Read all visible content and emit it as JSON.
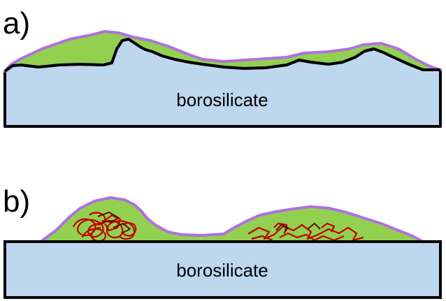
{
  "panels": [
    {
      "label": "a)",
      "substrate_label": "borosilicate"
    },
    {
      "label": "b)",
      "substrate_label": "borosilicate"
    }
  ],
  "colors": {
    "substrate": "#bdd7ee",
    "coating": "#92d050",
    "coating_outline": "#b070e0",
    "surface_line": "#000000",
    "tangles": "#c00000"
  }
}
